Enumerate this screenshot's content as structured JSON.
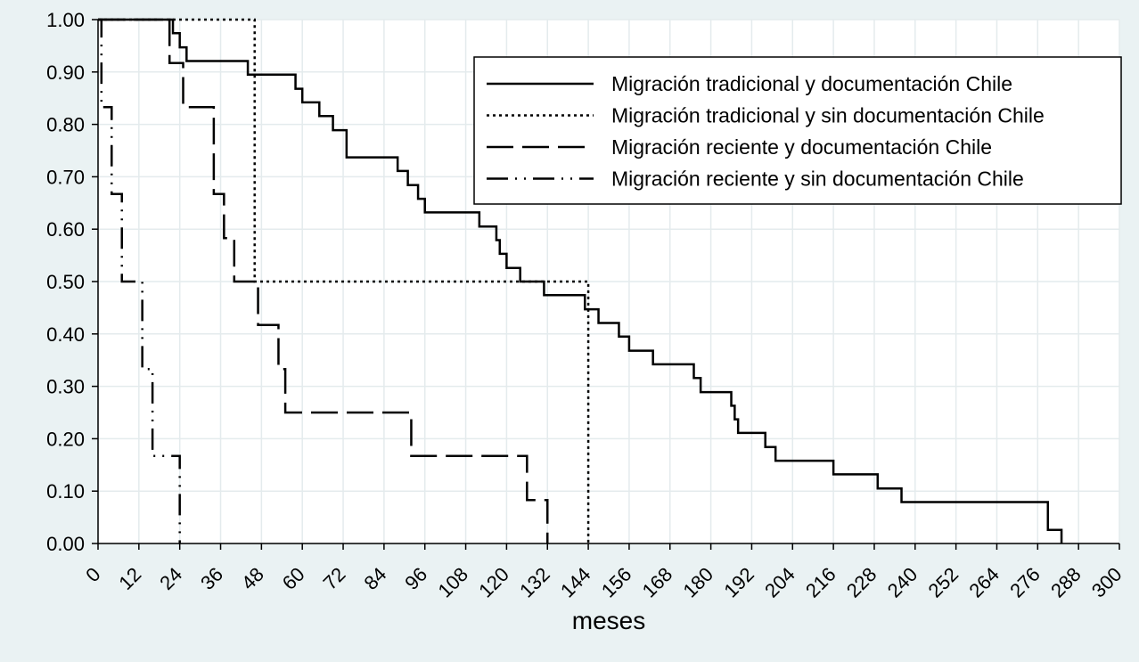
{
  "chart_data": {
    "type": "line",
    "step": true,
    "title": "",
    "xlabel": "meses",
    "ylabel": "",
    "xlim": [
      0,
      300
    ],
    "ylim": [
      0,
      1
    ],
    "x_ticks": [
      "0",
      "12",
      "24",
      "36",
      "48",
      "60",
      "72",
      "84",
      "96",
      "108",
      "120",
      "132",
      "144",
      "156",
      "168",
      "180",
      "192",
      "204",
      "216",
      "228",
      "240",
      "252",
      "264",
      "276",
      "288",
      "300"
    ],
    "y_ticks": [
      "0.00",
      "0.10",
      "0.20",
      "0.30",
      "0.40",
      "0.50",
      "0.60",
      "0.70",
      "0.80",
      "0.90",
      "1.00"
    ],
    "grid": true,
    "legend_position": "top-right",
    "series": [
      {
        "name": "Migración tradicional y documentación Chile",
        "style": "solid",
        "points": [
          [
            0,
            1.0
          ],
          [
            22,
            1.0
          ],
          [
            22,
            0.974
          ],
          [
            24,
            0.974
          ],
          [
            24,
            0.947
          ],
          [
            26,
            0.947
          ],
          [
            26,
            0.921
          ],
          [
            44,
            0.921
          ],
          [
            44,
            0.895
          ],
          [
            58,
            0.895
          ],
          [
            58,
            0.868
          ],
          [
            60,
            0.868
          ],
          [
            60,
            0.842
          ],
          [
            65,
            0.842
          ],
          [
            65,
            0.816
          ],
          [
            69,
            0.816
          ],
          [
            69,
            0.789
          ],
          [
            73,
            0.789
          ],
          [
            73,
            0.737
          ],
          [
            88,
            0.737
          ],
          [
            88,
            0.711
          ],
          [
            91,
            0.711
          ],
          [
            91,
            0.684
          ],
          [
            94,
            0.684
          ],
          [
            94,
            0.658
          ],
          [
            96,
            0.658
          ],
          [
            96,
            0.632
          ],
          [
            112,
            0.632
          ],
          [
            112,
            0.605
          ],
          [
            117,
            0.605
          ],
          [
            117,
            0.579
          ],
          [
            118,
            0.579
          ],
          [
            118,
            0.553
          ],
          [
            120,
            0.553
          ],
          [
            120,
            0.526
          ],
          [
            124,
            0.526
          ],
          [
            124,
            0.5
          ],
          [
            131,
            0.5
          ],
          [
            131,
            0.474
          ],
          [
            143,
            0.474
          ],
          [
            143,
            0.447
          ],
          [
            147,
            0.447
          ],
          [
            147,
            0.421
          ],
          [
            153,
            0.421
          ],
          [
            153,
            0.395
          ],
          [
            156,
            0.395
          ],
          [
            156,
            0.368
          ],
          [
            163,
            0.368
          ],
          [
            163,
            0.342
          ],
          [
            175,
            0.342
          ],
          [
            175,
            0.316
          ],
          [
            177,
            0.316
          ],
          [
            177,
            0.289
          ],
          [
            186,
            0.289
          ],
          [
            186,
            0.263
          ],
          [
            187,
            0.263
          ],
          [
            187,
            0.237
          ],
          [
            188,
            0.237
          ],
          [
            188,
            0.211
          ],
          [
            196,
            0.211
          ],
          [
            196,
            0.184
          ],
          [
            199,
            0.184
          ],
          [
            199,
            0.158
          ],
          [
            216,
            0.158
          ],
          [
            216,
            0.132
          ],
          [
            229,
            0.132
          ],
          [
            229,
            0.105
          ],
          [
            236,
            0.105
          ],
          [
            236,
            0.079
          ],
          [
            279,
            0.079
          ],
          [
            279,
            0.026
          ],
          [
            283,
            0.026
          ],
          [
            283,
            0.0
          ]
        ]
      },
      {
        "name": "Migración tradicional y sin documentación Chile",
        "style": "dotted",
        "points": [
          [
            0,
            1.0
          ],
          [
            46,
            1.0
          ],
          [
            46,
            0.5
          ],
          [
            144,
            0.5
          ],
          [
            144,
            0.0
          ]
        ]
      },
      {
        "name": "Migración reciente y documentación Chile",
        "style": "dashed",
        "points": [
          [
            0,
            1.0
          ],
          [
            21,
            1.0
          ],
          [
            21,
            0.917
          ],
          [
            25,
            0.917
          ],
          [
            25,
            0.833
          ],
          [
            34,
            0.833
          ],
          [
            34,
            0.667
          ],
          [
            37,
            0.667
          ],
          [
            37,
            0.583
          ],
          [
            40,
            0.583
          ],
          [
            40,
            0.5
          ],
          [
            47,
            0.5
          ],
          [
            47,
            0.417
          ],
          [
            53,
            0.417
          ],
          [
            53,
            0.333
          ],
          [
            55,
            0.333
          ],
          [
            55,
            0.25
          ],
          [
            92,
            0.25
          ],
          [
            92,
            0.167
          ],
          [
            126,
            0.167
          ],
          [
            126,
            0.083
          ],
          [
            132,
            0.083
          ],
          [
            132,
            0.0
          ]
        ]
      },
      {
        "name": "Migración reciente y sin documentación Chile",
        "style": "dashdot",
        "points": [
          [
            0,
            1.0
          ],
          [
            1,
            1.0
          ],
          [
            1,
            0.833
          ],
          [
            4,
            0.833
          ],
          [
            4,
            0.667
          ],
          [
            7,
            0.667
          ],
          [
            7,
            0.5
          ],
          [
            13,
            0.5
          ],
          [
            13,
            0.333
          ],
          [
            16,
            0.333
          ],
          [
            16,
            0.167
          ],
          [
            24,
            0.167
          ],
          [
            24,
            0.0
          ]
        ]
      }
    ]
  }
}
